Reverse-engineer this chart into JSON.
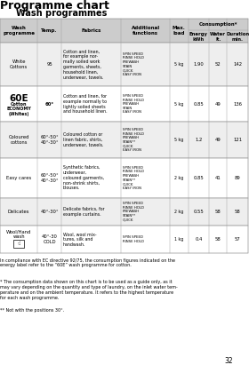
{
  "title": "Programme chart",
  "subtitle": "Wash programmes",
  "bg_color": "#ffffff",
  "rows": [
    {
      "programme": "White\nCottons",
      "programme_large": null,
      "temp": "95",
      "fabrics": "Cotton and linen,\nfor example nor-\nmally soiled work\ngarments, sheets,\nhousehold linen,\nunderwear, towels.",
      "functions": "SPIN SPEED\nRINSE HOLD\nPREWASH\nSTAIN\nQUICK\nEASY IRON",
      "load": "5 kg",
      "energy": "1.90",
      "water": "52",
      "duration": "142",
      "bg": "#eeeeee"
    },
    {
      "programme": "Cotton\nECONOMY\n(Whites)",
      "programme_large": "60E",
      "temp": "60°",
      "fabrics": "Cotton and linen, for\nexample normally to\nlightly soiled sheets\nand household linen.",
      "functions": "SPIN SPEED\nRINSE HOLD\nPREWASH\nSTAIN\nEASY IRON",
      "load": "5 kg",
      "energy": "0.85",
      "water": "49",
      "duration": "136",
      "bg": "#ffffff"
    },
    {
      "programme": "Coloured\ncottons",
      "programme_large": null,
      "temp": "60°-50°\n40°-30°",
      "fabrics": "Coloured cotton or\nlinen fabric, shirts,\nunderwear, towels.",
      "functions": "SPIN SPEED\nRINSE HOLD\nPREWASH\nSTAIN**\nQUICK\nEASY IRON",
      "load": "5 kg",
      "energy": "1.2",
      "water": "49",
      "duration": "121",
      "bg": "#eeeeee"
    },
    {
      "programme": "Easy cares",
      "programme_large": null,
      "temp": "60°-50°\n40°-30°",
      "fabrics": "Synthetic fabrics,\nunderwear,\ncoloured garments,\nnon-shrink shirts,\nblouses.",
      "functions": "SPIN SPEED\nRINSE HOLD\nPREWASH\nSTAIN**\nQUICK\nEASY IRON",
      "load": "2 kg",
      "energy": "0.85",
      "water": "41",
      "duration": "89",
      "bg": "#ffffff"
    },
    {
      "programme": "Delicates",
      "programme_large": null,
      "temp": "40°-30°",
      "fabrics": "Delicate fabrics, for\nexample curtains.",
      "functions": "SPIN SPEED\nRINSE HOLD\nPREWASH\nSTAIN**\nQUICK",
      "load": "2 kg",
      "energy": "0.55",
      "water": "58",
      "duration": "58",
      "bg": "#eeeeee"
    },
    {
      "programme": "Wool/Hand\nwash",
      "programme_large": null,
      "programme_icon": true,
      "temp": "40°-30\nCOLD",
      "fabrics": "Wool, wool mix-\ntures, silk and\nhandwash.",
      "functions": "SPIN SPEED\nRINSE HOLD",
      "load": "1 kg",
      "energy": "0.4",
      "water": "58",
      "duration": "57",
      "bg": "#ffffff"
    }
  ],
  "footnote1": "In compliance with EC directive 92/75, the consumption figures indicated on the\nenergy label refer to the “60E” wash programme for cotton.",
  "footnote2": "* The consumption data shown on this chart is to be used as a guide only, as it\nmay vary depending on the quantity and type of laundry, on the inlet water tem-\nperature and on the ambient temperature. It refers to the highest temperature\nfor each wash programme.",
  "footnote3": "** Not with the positions 30°.",
  "page_number": "32"
}
